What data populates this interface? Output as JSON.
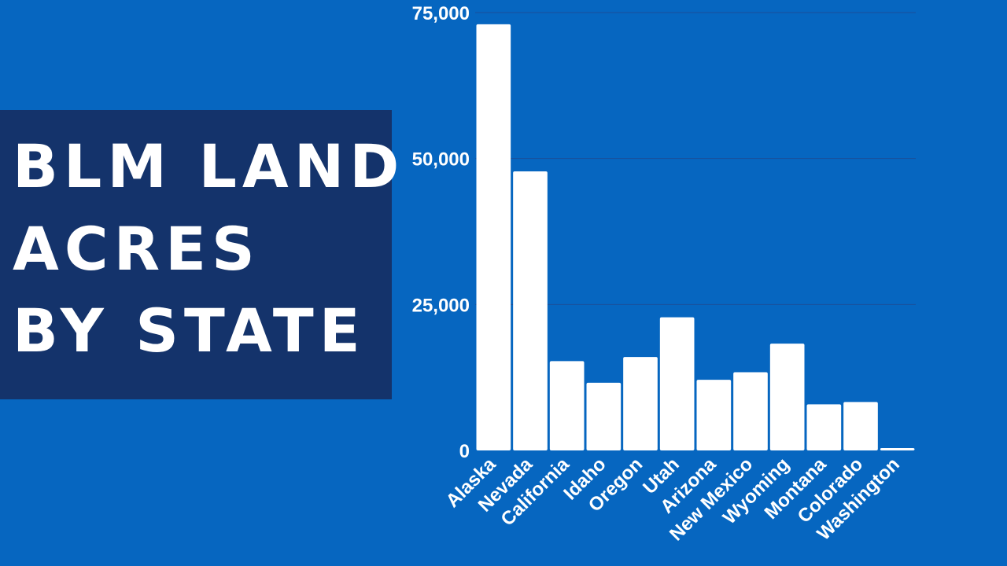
{
  "title_lines": [
    "BLM LAND",
    "ACRES",
    "BY STATE"
  ],
  "colors": {
    "background": "#0666C0",
    "title_box": "#14336B",
    "bars": "#FFFFFF",
    "grid": "#1A4F9A"
  },
  "chart_data": {
    "type": "bar",
    "categories": [
      "Alaska",
      "Nevada",
      "California",
      "Idaho",
      "Oregon",
      "Utah",
      "Arizona",
      "New Mexico",
      "Wyoming",
      "Montana",
      "Colorado",
      "Washington"
    ],
    "values": [
      73000,
      47800,
      15300,
      11600,
      16000,
      22800,
      12100,
      13400,
      18300,
      7900,
      8300,
      400
    ],
    "ylim": [
      0,
      75000
    ],
    "yticks": [
      0,
      25000,
      50000,
      75000
    ],
    "ytick_labels": [
      "0",
      "25,000",
      "50,000",
      "75,000"
    ],
    "grid": true,
    "legend": "none"
  }
}
